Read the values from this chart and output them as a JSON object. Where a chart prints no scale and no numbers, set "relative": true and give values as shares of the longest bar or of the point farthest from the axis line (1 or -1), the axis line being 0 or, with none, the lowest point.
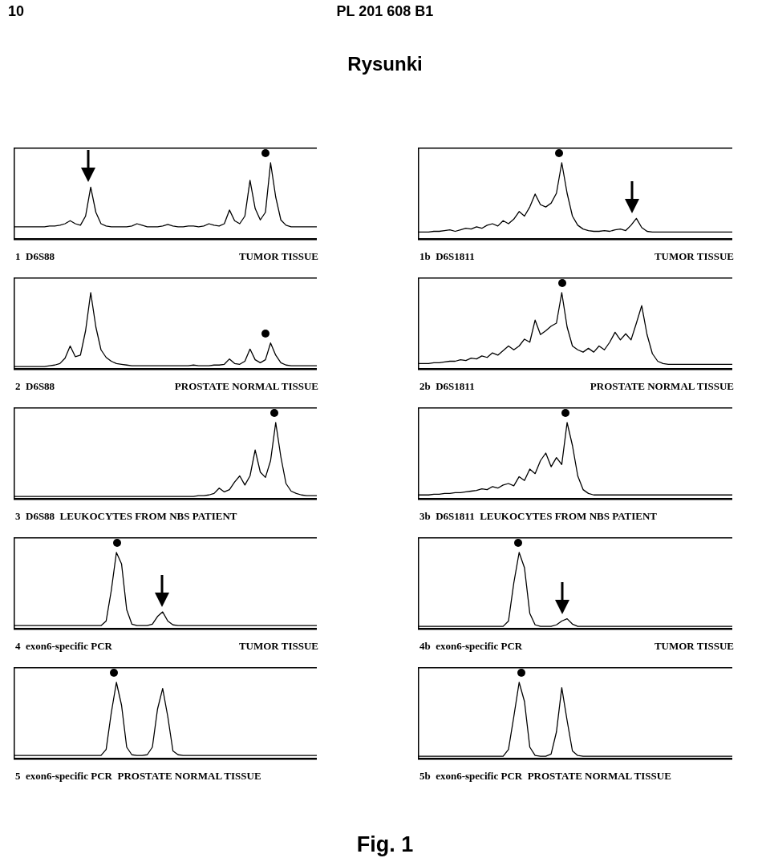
{
  "chart_data": [
    {
      "type": "other",
      "title": "Rysunki",
      "annotations": [
        "10",
        "PL 201 608 B1"
      ]
    },
    {
      "type": "line",
      "relative": true,
      "color": "#000000",
      "annotations": [
        "1  D6S88",
        "TUMOR TISSUE"
      ],
      "categories": [
        null,
        null,
        null,
        null,
        null,
        null,
        null,
        null,
        null,
        null,
        null,
        null,
        null,
        null,
        null,
        null,
        null,
        null,
        null,
        null,
        null,
        null,
        null,
        null,
        null,
        null,
        null,
        null,
        null,
        null,
        null,
        null,
        null,
        null,
        null,
        null,
        null,
        null,
        null,
        null,
        null,
        null,
        null,
        null,
        null,
        null,
        null,
        null,
        null,
        null,
        null,
        null,
        null,
        null,
        null,
        null,
        null,
        null,
        null,
        null
      ],
      "values": [
        0.16,
        0.16,
        0.16,
        0.16,
        0.16,
        0.16,
        0.16,
        0.17,
        0.17,
        0.18,
        0.2,
        0.24,
        0.2,
        0.18,
        0.3,
        0.68,
        0.35,
        0.2,
        0.17,
        0.16,
        0.16,
        0.16,
        0.16,
        0.17,
        0.2,
        0.18,
        0.16,
        0.16,
        0.16,
        0.17,
        0.19,
        0.17,
        0.16,
        0.16,
        0.17,
        0.17,
        0.16,
        0.17,
        0.2,
        0.18,
        0.17,
        0.2,
        0.38,
        0.24,
        0.2,
        0.3,
        0.77,
        0.4,
        0.25,
        0.35,
        1,
        0.55,
        0.25,
        0.18,
        0.16,
        0.16,
        0.16,
        0.16,
        0.16,
        0.16
      ]
    },
    {
      "type": "line",
      "relative": true,
      "color": "#000000",
      "annotations": [
        "1b  D6S1811",
        "TUMOR TISSUE"
      ],
      "categories": [
        null,
        null,
        null,
        null,
        null,
        null,
        null,
        null,
        null,
        null,
        null,
        null,
        null,
        null,
        null,
        null,
        null,
        null,
        null,
        null,
        null,
        null,
        null,
        null,
        null,
        null,
        null,
        null,
        null,
        null,
        null,
        null,
        null,
        null,
        null,
        null,
        null,
        null,
        null,
        null,
        null,
        null,
        null,
        null,
        null,
        null,
        null,
        null,
        null,
        null,
        null,
        null,
        null,
        null,
        null,
        null,
        null,
        null,
        null,
        null
      ],
      "values": [
        0.09,
        0.09,
        0.09,
        0.1,
        0.1,
        0.11,
        0.12,
        0.1,
        0.12,
        0.14,
        0.13,
        0.16,
        0.14,
        0.18,
        0.2,
        0.17,
        0.24,
        0.2,
        0.26,
        0.36,
        0.3,
        0.42,
        0.59,
        0.45,
        0.42,
        0.47,
        0.6,
        1,
        0.6,
        0.3,
        0.18,
        0.13,
        0.11,
        0.1,
        0.1,
        0.11,
        0.1,
        0.12,
        0.13,
        0.11,
        0.18,
        0.27,
        0.15,
        0.1,
        0.09,
        0.09,
        0.09,
        0.09,
        0.09,
        0.09,
        0.09,
        0.09,
        0.09,
        0.09,
        0.09,
        0.09,
        0.09,
        0.09,
        0.09,
        0.09
      ]
    },
    {
      "type": "line",
      "relative": true,
      "color": "#000000",
      "annotations": [
        "2  D6S88",
        "PROSTATE NORMAL TISSUE"
      ],
      "categories": [
        null,
        null,
        null,
        null,
        null,
        null,
        null,
        null,
        null,
        null,
        null,
        null,
        null,
        null,
        null,
        null,
        null,
        null,
        null,
        null,
        null,
        null,
        null,
        null,
        null,
        null,
        null,
        null,
        null,
        null,
        null,
        null,
        null,
        null,
        null,
        null,
        null,
        null,
        null,
        null,
        null,
        null,
        null,
        null,
        null,
        null,
        null,
        null,
        null,
        null,
        null,
        null,
        null,
        null,
        null,
        null,
        null,
        null,
        null,
        null
      ],
      "values": [
        0.03,
        0.03,
        0.03,
        0.03,
        0.03,
        0.03,
        0.03,
        0.04,
        0.05,
        0.07,
        0.14,
        0.3,
        0.16,
        0.18,
        0.5,
        1,
        0.55,
        0.25,
        0.15,
        0.1,
        0.07,
        0.06,
        0.05,
        0.04,
        0.04,
        0.04,
        0.04,
        0.04,
        0.04,
        0.04,
        0.04,
        0.04,
        0.04,
        0.04,
        0.04,
        0.05,
        0.04,
        0.04,
        0.04,
        0.05,
        0.05,
        0.06,
        0.13,
        0.07,
        0.06,
        0.1,
        0.26,
        0.12,
        0.08,
        0.12,
        0.34,
        0.18,
        0.08,
        0.05,
        0.04,
        0.04,
        0.04,
        0.04,
        0.04,
        0.04
      ]
    },
    {
      "type": "line",
      "relative": true,
      "color": "#000000",
      "annotations": [
        "2b  D6S1811",
        "PROSTATE NORMAL TISSUE"
      ],
      "categories": [
        null,
        null,
        null,
        null,
        null,
        null,
        null,
        null,
        null,
        null,
        null,
        null,
        null,
        null,
        null,
        null,
        null,
        null,
        null,
        null,
        null,
        null,
        null,
        null,
        null,
        null,
        null,
        null,
        null,
        null,
        null,
        null,
        null,
        null,
        null,
        null,
        null,
        null,
        null,
        null,
        null,
        null,
        null,
        null,
        null,
        null,
        null,
        null,
        null,
        null,
        null,
        null,
        null,
        null,
        null,
        null,
        null,
        null,
        null,
        null
      ],
      "values": [
        0.07,
        0.07,
        0.07,
        0.08,
        0.08,
        0.09,
        0.1,
        0.1,
        0.12,
        0.11,
        0.14,
        0.13,
        0.17,
        0.15,
        0.21,
        0.18,
        0.24,
        0.3,
        0.25,
        0.3,
        0.39,
        0.35,
        0.64,
        0.45,
        0.5,
        0.56,
        0.6,
        1,
        0.55,
        0.3,
        0.25,
        0.22,
        0.27,
        0.22,
        0.3,
        0.25,
        0.35,
        0.48,
        0.38,
        0.46,
        0.38,
        0.6,
        0.83,
        0.45,
        0.2,
        0.1,
        0.07,
        0.06,
        0.06,
        0.06,
        0.06,
        0.06,
        0.06,
        0.06,
        0.06,
        0.06,
        0.06,
        0.06,
        0.06,
        0.06
      ]
    },
    {
      "type": "line",
      "relative": true,
      "color": "#000000",
      "annotations": [
        "3  D6S88  LEUKOCYTES FROM NBS PATIENT"
      ],
      "categories": [
        null,
        null,
        null,
        null,
        null,
        null,
        null,
        null,
        null,
        null,
        null,
        null,
        null,
        null,
        null,
        null,
        null,
        null,
        null,
        null,
        null,
        null,
        null,
        null,
        null,
        null,
        null,
        null,
        null,
        null,
        null,
        null,
        null,
        null,
        null,
        null,
        null,
        null,
        null,
        null,
        null,
        null,
        null,
        null,
        null,
        null,
        null,
        null,
        null,
        null,
        null,
        null,
        null,
        null,
        null,
        null,
        null,
        null,
        null,
        null
      ],
      "values": [
        0.03,
        0.03,
        0.03,
        0.03,
        0.03,
        0.03,
        0.03,
        0.03,
        0.03,
        0.03,
        0.03,
        0.03,
        0.03,
        0.03,
        0.03,
        0.03,
        0.03,
        0.03,
        0.03,
        0.03,
        0.03,
        0.03,
        0.03,
        0.03,
        0.03,
        0.03,
        0.03,
        0.03,
        0.03,
        0.03,
        0.03,
        0.03,
        0.03,
        0.03,
        0.03,
        0.03,
        0.04,
        0.04,
        0.05,
        0.07,
        0.14,
        0.09,
        0.12,
        0.22,
        0.3,
        0.18,
        0.3,
        0.64,
        0.35,
        0.28,
        0.5,
        1,
        0.55,
        0.2,
        0.1,
        0.07,
        0.05,
        0.04,
        0.04,
        0.04
      ]
    },
    {
      "type": "line",
      "relative": true,
      "color": "#000000",
      "annotations": [
        "3b  D6S1811  LEUKOCYTES FROM NBS PATIENT"
      ],
      "categories": [
        null,
        null,
        null,
        null,
        null,
        null,
        null,
        null,
        null,
        null,
        null,
        null,
        null,
        null,
        null,
        null,
        null,
        null,
        null,
        null,
        null,
        null,
        null,
        null,
        null,
        null,
        null,
        null,
        null,
        null,
        null,
        null,
        null,
        null,
        null,
        null,
        null,
        null,
        null,
        null,
        null,
        null,
        null,
        null,
        null,
        null,
        null,
        null,
        null,
        null,
        null,
        null,
        null,
        null,
        null,
        null,
        null,
        null,
        null,
        null
      ],
      "values": [
        0.05,
        0.05,
        0.05,
        0.06,
        0.06,
        0.07,
        0.07,
        0.08,
        0.08,
        0.09,
        0.1,
        0.11,
        0.13,
        0.12,
        0.16,
        0.14,
        0.18,
        0.2,
        0.17,
        0.29,
        0.24,
        0.39,
        0.33,
        0.5,
        0.6,
        0.42,
        0.54,
        0.45,
        1,
        0.7,
        0.3,
        0.12,
        0.07,
        0.05,
        0.05,
        0.05,
        0.05,
        0.05,
        0.05,
        0.05,
        0.05,
        0.05,
        0.05,
        0.05,
        0.05,
        0.05,
        0.05,
        0.05,
        0.05,
        0.05,
        0.05,
        0.05,
        0.05,
        0.05,
        0.05,
        0.05,
        0.05,
        0.05,
        0.05,
        0.05
      ]
    },
    {
      "type": "line",
      "relative": true,
      "color": "#000000",
      "annotations": [
        "4  exon6-specific PCR",
        "TUMOR TISSUE"
      ],
      "categories": [
        null,
        null,
        null,
        null,
        null,
        null,
        null,
        null,
        null,
        null,
        null,
        null,
        null,
        null,
        null,
        null,
        null,
        null,
        null,
        null,
        null,
        null,
        null,
        null,
        null,
        null,
        null,
        null,
        null,
        null,
        null,
        null,
        null,
        null,
        null,
        null,
        null,
        null,
        null,
        null,
        null,
        null,
        null,
        null,
        null,
        null,
        null,
        null,
        null,
        null,
        null,
        null,
        null,
        null,
        null,
        null,
        null,
        null,
        null,
        null
      ],
      "values": [
        0.04,
        0.04,
        0.04,
        0.04,
        0.04,
        0.04,
        0.04,
        0.04,
        0.04,
        0.04,
        0.04,
        0.04,
        0.04,
        0.04,
        0.04,
        0.04,
        0.04,
        0.04,
        0.1,
        0.5,
        1,
        0.85,
        0.25,
        0.06,
        0.04,
        0.04,
        0.04,
        0.06,
        0.16,
        0.22,
        0.1,
        0.05,
        0.04,
        0.04,
        0.04,
        0.04,
        0.04,
        0.04,
        0.04,
        0.04,
        0.04,
        0.04,
        0.04,
        0.04,
        0.04,
        0.04,
        0.04,
        0.04,
        0.04,
        0.04,
        0.04,
        0.04,
        0.04,
        0.04,
        0.04,
        0.04,
        0.04,
        0.04,
        0.04,
        0.04
      ]
    },
    {
      "type": "line",
      "relative": true,
      "color": "#000000",
      "annotations": [
        "4b  exon6-specific PCR",
        "TUMOR TISSUE"
      ],
      "categories": [
        null,
        null,
        null,
        null,
        null,
        null,
        null,
        null,
        null,
        null,
        null,
        null,
        null,
        null,
        null,
        null,
        null,
        null,
        null,
        null,
        null,
        null,
        null,
        null,
        null,
        null,
        null,
        null,
        null,
        null,
        null,
        null,
        null,
        null,
        null,
        null,
        null,
        null,
        null,
        null,
        null,
        null,
        null,
        null,
        null,
        null,
        null,
        null,
        null,
        null,
        null,
        null,
        null,
        null,
        null,
        null,
        null,
        null,
        null,
        null
      ],
      "values": [
        0.03,
        0.03,
        0.03,
        0.03,
        0.03,
        0.03,
        0.03,
        0.03,
        0.03,
        0.03,
        0.03,
        0.03,
        0.03,
        0.03,
        0.03,
        0.03,
        0.03,
        0.1,
        0.6,
        1,
        0.8,
        0.2,
        0.05,
        0.03,
        0.03,
        0.03,
        0.05,
        0.1,
        0.13,
        0.06,
        0.03,
        0.03,
        0.03,
        0.03,
        0.03,
        0.03,
        0.03,
        0.03,
        0.03,
        0.03,
        0.03,
        0.03,
        0.03,
        0.03,
        0.03,
        0.03,
        0.03,
        0.03,
        0.03,
        0.03,
        0.03,
        0.03,
        0.03,
        0.03,
        0.03,
        0.03,
        0.03,
        0.03,
        0.03,
        0.03
      ]
    },
    {
      "type": "line",
      "relative": true,
      "color": "#000000",
      "annotations": [
        "5  exon6-specific PCR  PROSTATE NORMAL TISSUE"
      ],
      "categories": [
        null,
        null,
        null,
        null,
        null,
        null,
        null,
        null,
        null,
        null,
        null,
        null,
        null,
        null,
        null,
        null,
        null,
        null,
        null,
        null,
        null,
        null,
        null,
        null,
        null,
        null,
        null,
        null,
        null,
        null,
        null,
        null,
        null,
        null,
        null,
        null,
        null,
        null,
        null,
        null,
        null,
        null,
        null,
        null,
        null,
        null,
        null,
        null,
        null,
        null,
        null,
        null,
        null,
        null,
        null,
        null,
        null,
        null,
        null,
        null
      ],
      "values": [
        0.04,
        0.04,
        0.04,
        0.04,
        0.04,
        0.04,
        0.04,
        0.04,
        0.04,
        0.04,
        0.04,
        0.04,
        0.04,
        0.04,
        0.04,
        0.04,
        0.04,
        0.04,
        0.12,
        0.6,
        1,
        0.7,
        0.15,
        0.05,
        0.04,
        0.04,
        0.05,
        0.15,
        0.65,
        0.92,
        0.55,
        0.1,
        0.05,
        0.04,
        0.04,
        0.04,
        0.04,
        0.04,
        0.04,
        0.04,
        0.04,
        0.04,
        0.04,
        0.04,
        0.04,
        0.04,
        0.04,
        0.04,
        0.04,
        0.04,
        0.04,
        0.04,
        0.04,
        0.04,
        0.04,
        0.04,
        0.04,
        0.04,
        0.04,
        0.04
      ]
    },
    {
      "type": "line",
      "relative": true,
      "color": "#000000",
      "annotations": [
        "5b  exon6-specific PCR  PROSTATE NORMAL TISSUE"
      ],
      "categories": [
        null,
        null,
        null,
        null,
        null,
        null,
        null,
        null,
        null,
        null,
        null,
        null,
        null,
        null,
        null,
        null,
        null,
        null,
        null,
        null,
        null,
        null,
        null,
        null,
        null,
        null,
        null,
        null,
        null,
        null,
        null,
        null,
        null,
        null,
        null,
        null,
        null,
        null,
        null,
        null,
        null,
        null,
        null,
        null,
        null,
        null,
        null,
        null,
        null,
        null,
        null,
        null,
        null,
        null,
        null,
        null,
        null,
        null,
        null,
        null
      ],
      "values": [
        0.03,
        0.03,
        0.03,
        0.03,
        0.03,
        0.03,
        0.03,
        0.03,
        0.03,
        0.03,
        0.03,
        0.03,
        0.03,
        0.03,
        0.03,
        0.03,
        0.03,
        0.12,
        0.55,
        1,
        0.75,
        0.15,
        0.04,
        0.03,
        0.03,
        0.06,
        0.35,
        0.93,
        0.5,
        0.1,
        0.04,
        0.03,
        0.03,
        0.03,
        0.03,
        0.03,
        0.03,
        0.03,
        0.03,
        0.03,
        0.03,
        0.03,
        0.03,
        0.03,
        0.03,
        0.03,
        0.03,
        0.03,
        0.03,
        0.03,
        0.03,
        0.03,
        0.03,
        0.03,
        0.03,
        0.03,
        0.03,
        0.03,
        0.03,
        0.03
      ]
    },
    {
      "type": "other",
      "title": "Fig. 1"
    }
  ]
}
